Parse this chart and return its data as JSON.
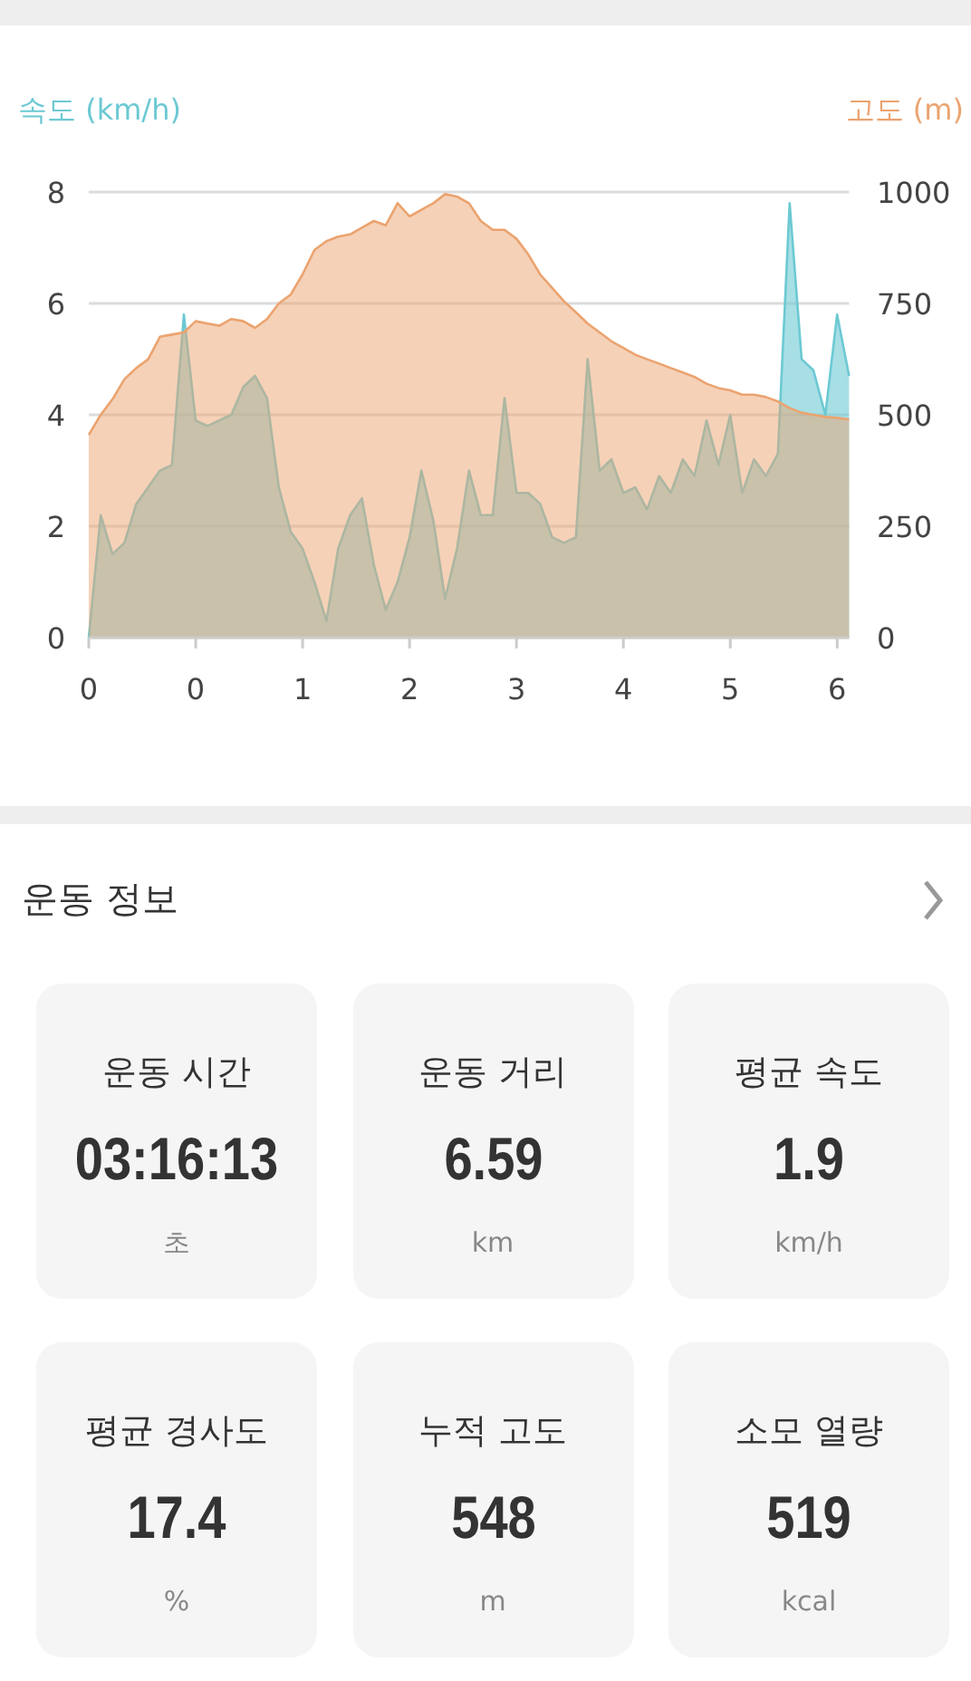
{
  "chart_data": [
    {
      "type": "area",
      "ylabel": "속도 (km/h)",
      "y2label": "고도 (m)",
      "categories": [
        "0",
        null,
        null,
        null,
        null,
        null,
        null,
        null,
        null,
        "0",
        null,
        null,
        null,
        null,
        null,
        null,
        null,
        null,
        "1",
        null,
        null,
        null,
        null,
        null,
        null,
        null,
        null,
        "2",
        null,
        null,
        null,
        null,
        null,
        null,
        null,
        null,
        "3",
        null,
        null,
        null,
        null,
        null,
        null,
        null,
        null,
        "4",
        null,
        null,
        null,
        null,
        null,
        null,
        null,
        null,
        "5",
        null,
        null,
        null,
        null,
        null,
        null,
        null,
        null,
        "6",
        null
      ],
      "ylim": [
        0,
        8
      ],
      "yticks": [
        0,
        2,
        4,
        6,
        8
      ],
      "y2lim": [
        0,
        1000
      ],
      "y2ticks": [
        0,
        250,
        500,
        750,
        1000
      ],
      "grid": "y",
      "series": [
        {
          "color": "#6cc9d3",
          "values": [
            0,
            2.2,
            1.5,
            1.7,
            2.4,
            2.7,
            3.0,
            3.1,
            5.8,
            3.9,
            3.8,
            3.9,
            4.0,
            4.5,
            4.7,
            4.3,
            2.7,
            1.9,
            1.6,
            1.0,
            0.3,
            1.6,
            2.2,
            2.5,
            1.3,
            0.5,
            1.0,
            1.8,
            3.0,
            2.1,
            0.7,
            1.6,
            3.0,
            2.2,
            2.2,
            4.3,
            2.6,
            2.6,
            2.4,
            1.8,
            1.7,
            1.8,
            5.0,
            3.0,
            3.2,
            2.6,
            2.7,
            2.3,
            2.9,
            2.6,
            3.2,
            2.9,
            3.9,
            3.1,
            4.0,
            2.6,
            3.2,
            2.9,
            3.3,
            7.8,
            5.0,
            4.8,
            4.0,
            5.8,
            4.7
          ]
        },
        {
          "color": "#eba36f",
          "axis": "y2",
          "values": [
            455,
            500,
            535,
            580,
            605,
            625,
            675,
            680,
            685,
            710,
            705,
            700,
            715,
            710,
            695,
            715,
            750,
            770,
            815,
            870,
            890,
            900,
            905,
            920,
            935,
            925,
            975,
            945,
            960,
            975,
            995,
            990,
            975,
            935,
            915,
            915,
            895,
            860,
            815,
            785,
            755,
            730,
            705,
            685,
            665,
            650,
            635,
            625,
            615,
            605,
            595,
            585,
            570,
            560,
            555,
            545,
            545,
            540,
            530,
            515,
            505,
            500,
            495,
            493,
            490
          ]
        }
      ]
    },
    {
      "type": "other",
      "title": "운동 정보",
      "annotations": [
        "운동 시간",
        "03:16:13",
        "초",
        "운동 거리",
        "6.59",
        "km",
        "평균 속도",
        "1.9",
        "km/h",
        "평균 경사도",
        "17.4",
        "%",
        "누적 고도",
        "548",
        "m",
        "소모 열량",
        "519",
        "kcal"
      ]
    }
  ]
}
